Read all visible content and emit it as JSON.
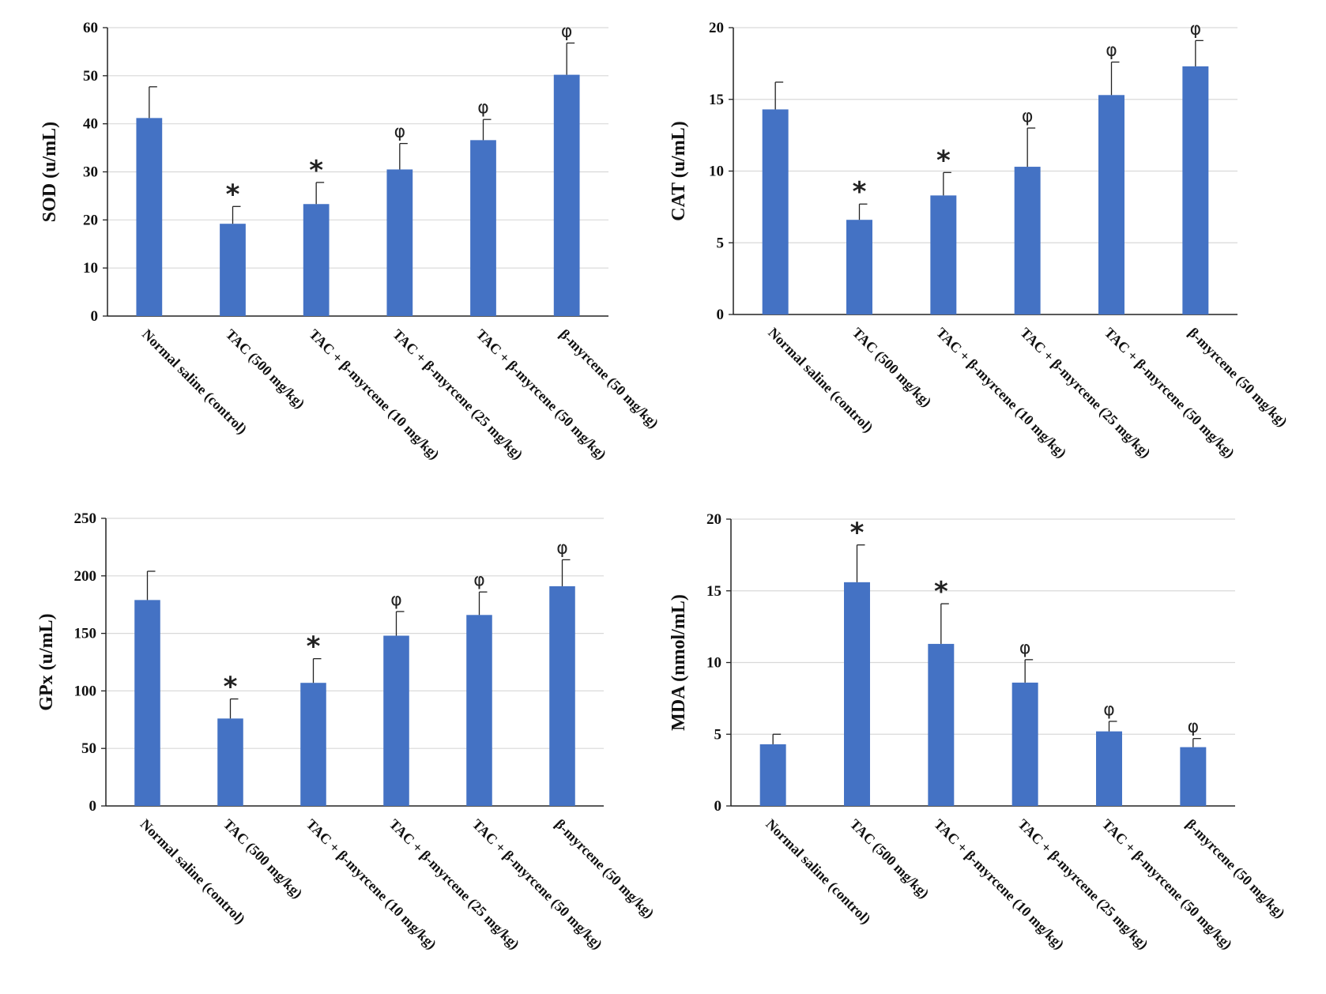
{
  "style": {
    "bar_color": "#4472c4",
    "grid_color": "#d9d9d9",
    "axis_color": "#222222"
  },
  "chart_data": [
    {
      "type": "bar",
      "ylabel": "SOD (u/mL)",
      "ylim": [
        0,
        60
      ],
      "yticks": [
        0,
        10,
        20,
        30,
        40,
        50,
        60
      ],
      "categories": [
        "Normal saline (control)",
        "TAC (500 mg/kg)",
        "TAC + β-myrcene (10 mg/kg)",
        "TAC + β-myrcene (25 mg/kg)",
        "TAC + β-myrcene (50 mg/kg)",
        "β-myrcene (50 mg/kg)"
      ],
      "values": [
        41.2,
        19.2,
        23.3,
        30.5,
        36.6,
        50.2
      ],
      "errors": [
        6.5,
        3.6,
        4.5,
        5.4,
        4.3,
        6.6
      ],
      "annotations": [
        "",
        "*",
        "*",
        "φ",
        "φ",
        "φ"
      ],
      "grid": true
    },
    {
      "type": "bar",
      "ylabel": "CAT (u/mL)",
      "ylim": [
        0,
        20
      ],
      "yticks": [
        0,
        5,
        10,
        15,
        20
      ],
      "categories": [
        "Normal saline (control)",
        "TAC (500 mg/kg)",
        "TAC + β-myrcene (10 mg/kg)",
        "TAC + β-myrcene (25 mg/kg)",
        "TAC + β-myrcene (50 mg/kg)",
        "β-myrcene (50 mg/kg)"
      ],
      "values": [
        14.3,
        6.6,
        8.3,
        10.3,
        15.3,
        17.3
      ],
      "errors": [
        1.9,
        1.1,
        1.6,
        2.7,
        2.3,
        1.8
      ],
      "annotations": [
        "",
        "*",
        "*",
        "φ",
        "φ",
        "φ"
      ],
      "grid": true
    },
    {
      "type": "bar",
      "ylabel": "GPx (u/mL)",
      "ylim": [
        0,
        250
      ],
      "yticks": [
        0,
        50,
        100,
        150,
        200,
        250
      ],
      "categories": [
        "Normal saline (control)",
        "TAC (500 mg/kg)",
        "TAC + β-myrcene (10 mg/kg)",
        "TAC + β-myrcene (25 mg/kg)",
        "TAC + β-myrcene (50 mg/kg)",
        "β-myrcene (50 mg/kg)"
      ],
      "values": [
        179,
        76,
        107,
        148,
        166,
        191
      ],
      "errors": [
        25,
        17,
        21,
        21,
        20,
        23
      ],
      "annotations": [
        "",
        "*",
        "*",
        "φ",
        "φ",
        "φ"
      ],
      "grid": true
    },
    {
      "type": "bar",
      "ylabel": "MDA (nmol/mL)",
      "ylim": [
        0,
        20
      ],
      "yticks": [
        0,
        5,
        10,
        15,
        20
      ],
      "categories": [
        "Normal saline (control)",
        "TAC (500 mg/kg)",
        "TAC + β-myrcene (10 mg/kg)",
        "TAC + β-myrcene (25 mg/kg)",
        "TAC + β-myrcene (50 mg/kg)",
        "β-myrcene (50 mg/kg)"
      ],
      "values": [
        4.3,
        15.6,
        11.3,
        8.6,
        5.2,
        4.1
      ],
      "errors": [
        0.7,
        2.6,
        2.8,
        1.6,
        0.7,
        0.6
      ],
      "annotations": [
        "",
        "*",
        "*",
        "φ",
        "φ",
        "φ"
      ],
      "grid": true
    }
  ]
}
